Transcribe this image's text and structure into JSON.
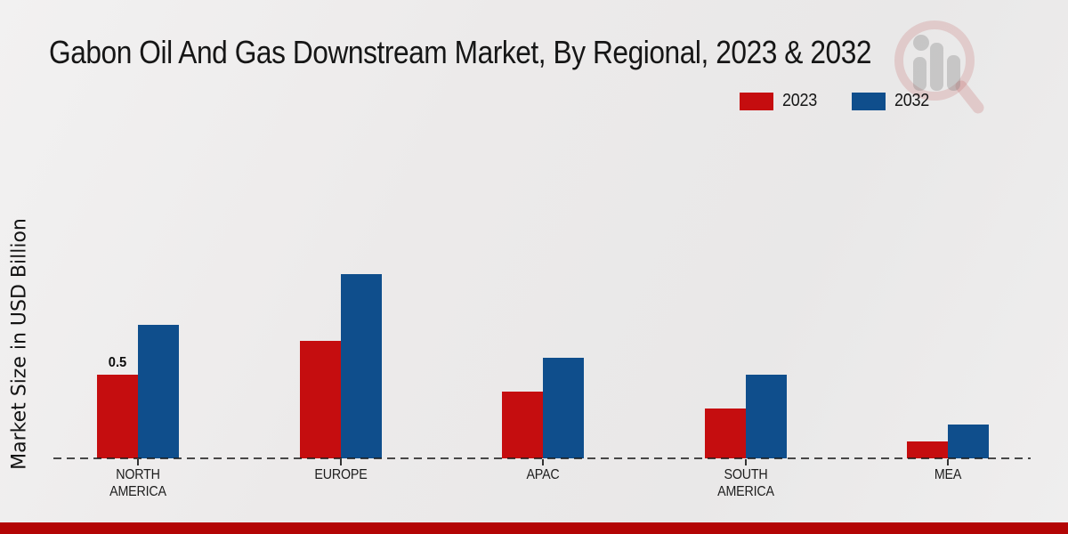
{
  "header": {
    "title": "Gabon Oil And Gas Downstream Market, By Regional, 2023 & 2032"
  },
  "legend": {
    "items": [
      {
        "label": "2023",
        "color": "#c50d0f"
      },
      {
        "label": "2032",
        "color": "#0f4e8c"
      }
    ]
  },
  "chart_data": {
    "type": "bar",
    "title": "Gabon Oil And Gas Downstream Market, By Regional, 2023 & 2032",
    "xlabel": "",
    "ylabel": "Market Size in USD Billion",
    "ylim": [
      0,
      1.2
    ],
    "grid": false,
    "legend_position": "top-right",
    "baseline_style": "dashed",
    "categories": [
      {
        "id": "north-america",
        "lines": [
          "NORTH",
          "AMERICA"
        ]
      },
      {
        "id": "europe",
        "lines": [
          "EUROPE"
        ]
      },
      {
        "id": "apac",
        "lines": [
          "APAC"
        ]
      },
      {
        "id": "south-america",
        "lines": [
          "SOUTH",
          "AMERICA"
        ]
      },
      {
        "id": "mea",
        "lines": [
          "MEA"
        ]
      }
    ],
    "series": [
      {
        "name": "2023",
        "color": "#c50d0f",
        "values": [
          0.5,
          0.7,
          0.4,
          0.3,
          0.1
        ]
      },
      {
        "name": "2032",
        "color": "#0f4e8c",
        "values": [
          0.8,
          1.1,
          0.6,
          0.5,
          0.2
        ]
      }
    ],
    "data_labels": [
      {
        "series": 0,
        "category": 0,
        "text": "0.5"
      }
    ]
  },
  "colors": {
    "background": "#eceaea",
    "title_text": "#161616",
    "axis_dash": "#1a1a1a",
    "footer_stripe": "#b30505"
  },
  "watermark": {
    "name": "magnifier-bars-logo"
  }
}
